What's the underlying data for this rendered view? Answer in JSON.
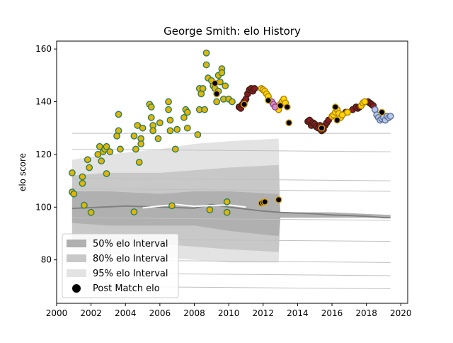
{
  "chart_data": {
    "type": "scatter",
    "title": "George Smith: elo History",
    "xlabel": "",
    "ylabel": "elo score",
    "xlim": [
      2000.0,
      2020.4
    ],
    "ylim": [
      63.5,
      163.0
    ],
    "xticks": [
      2000,
      2002,
      2004,
      2006,
      2008,
      2010,
      2012,
      2014,
      2016,
      2018,
      2020
    ],
    "yticks": [
      80,
      100,
      120,
      140,
      160
    ],
    "grid": false,
    "legend_position": "lower-left",
    "legend": [
      {
        "label": "50% elo Interval",
        "swatch": "band50"
      },
      {
        "label": "80% elo Interval",
        "swatch": "band80"
      },
      {
        "label": "95% elo Interval",
        "swatch": "band95"
      },
      {
        "label": "Post Match elo",
        "swatch": "dot"
      }
    ],
    "colors": {
      "band50": "#b0b0b0",
      "band80": "#c8c8c8",
      "band95": "#e3e3e3",
      "mean_line": "#808080",
      "thin_line": "#c0c0c0",
      "dot_outline": "#000000"
    },
    "bands": {
      "x": [
        2000.9,
        2003.0,
        2006.0,
        2008.0,
        2010.0,
        2012.9,
        2013.0,
        2016.0,
        2019.4
      ],
      "p50_low": [
        94,
        93,
        93,
        93,
        91,
        89,
        96,
        96,
        96
      ],
      "p50_high": [
        106,
        106,
        105,
        106,
        106,
        105,
        98,
        98,
        97
      ],
      "p80_low": [
        88,
        86,
        86,
        85,
        84,
        83,
        96,
        96,
        96
      ],
      "p80_high": [
        112,
        113,
        113,
        114,
        115,
        116,
        98,
        98,
        97
      ],
      "p95_low": [
        84,
        82,
        81,
        80,
        79,
        79,
        96,
        96,
        96
      ],
      "p95_high": [
        118,
        120,
        122,
        124,
        125,
        126,
        98,
        98,
        97
      ]
    },
    "mean_line": {
      "x": [
        2000.9,
        2002.0,
        2004.0,
        2006.0,
        2008.0,
        2009.0,
        2010.0,
        2012.0,
        2013.0,
        2015.0,
        2016.0,
        2017.0,
        2018.0,
        2019.0,
        2019.4
      ],
      "y": [
        99.5,
        99.8,
        100.4,
        100.0,
        99.6,
        101.0,
        100.0,
        98.5,
        98.0,
        97.5,
        97.0,
        96.8,
        96.5,
        96.0,
        96.0
      ]
    },
    "white_line": {
      "x": [
        2005.0,
        2006.0,
        2007.0,
        2008.0,
        2009.0,
        2010.0,
        2011.0
      ],
      "y": [
        99.7,
        100.4,
        101.0,
        100.3,
        100.6,
        100.8,
        100.0
      ]
    },
    "ghost_lines": {
      "x": [
        2000.9,
        2019.4
      ],
      "levels": [
        [
          128,
          128
        ],
        [
          122,
          121
        ],
        [
          111,
          110
        ],
        [
          107,
          106
        ],
        [
          96,
          95
        ],
        [
          88,
          87
        ],
        [
          80,
          79
        ],
        [
          75,
          74
        ],
        [
          70,
          69
        ]
      ]
    },
    "series": [
      {
        "name": "Post Match elo",
        "groups": [
          {
            "fill": "#e3b506",
            "edge": "#2e7d5b",
            "points": [
              [
                2000.9,
                105.7
              ],
              [
                2000.9,
                113.0
              ],
              [
                2001.0,
                105.0
              ],
              [
                2001.5,
                111.5
              ],
              [
                2001.5,
                109.0
              ],
              [
                2001.6,
                100.7
              ],
              [
                2001.8,
                118.0
              ],
              [
                2001.9,
                115.0
              ],
              [
                2002.0,
                98.0
              ],
              [
                2002.4,
                120.0
              ],
              [
                2002.5,
                123.0
              ],
              [
                2002.6,
                117.5
              ],
              [
                2002.7,
                121.0
              ],
              [
                2002.8,
                122.0
              ],
              [
                2002.9,
                112.7
              ],
              [
                2002.9,
                123.0
              ],
              [
                2003.1,
                121.0
              ],
              [
                2003.5,
                127.0
              ],
              [
                2003.6,
                129.0
              ],
              [
                2003.6,
                135.2
              ],
              [
                2003.7,
                122.0
              ],
              [
                2004.5,
                127.0
              ],
              [
                2004.5,
                98.2
              ],
              [
                2004.6,
                122.0
              ],
              [
                2004.7,
                131.0
              ],
              [
                2004.9,
                126.0
              ],
              [
                2004.8,
                117.0
              ],
              [
                2004.9,
                124.0
              ],
              [
                2005.0,
                130.0
              ],
              [
                2005.4,
                139.0
              ],
              [
                2005.5,
                134.0
              ],
              [
                2005.6,
                131.0
              ],
              [
                2005.5,
                138.0
              ],
              [
                2005.6,
                129.0
              ],
              [
                2005.9,
                126.0
              ],
              [
                2006.0,
                132.0
              ],
              [
                2006.5,
                140.0
              ],
              [
                2006.5,
                137.0
              ],
              [
                2006.6,
                129.0
              ],
              [
                2006.6,
                133.0
              ],
              [
                2006.7,
                100.5
              ],
              [
                2006.9,
                122.0
              ],
              [
                2007.0,
                129.5
              ],
              [
                2007.4,
                134.0
              ],
              [
                2007.5,
                137.0
              ],
              [
                2007.6,
                130.0
              ],
              [
                2007.6,
                136.0
              ],
              [
                2008.2,
                127.5
              ],
              [
                2008.3,
                137.0
              ],
              [
                2008.3,
                145.0
              ],
              [
                2008.4,
                143.0
              ],
              [
                2008.5,
                145.0
              ],
              [
                2008.6,
                137.0
              ],
              [
                2008.7,
                154.0
              ],
              [
                2008.7,
                158.5
              ],
              [
                2008.8,
                149.0
              ],
              [
                2008.9,
                99.0
              ],
              [
                2009.0,
                148.0
              ],
              [
                2009.1,
                146.0
              ],
              [
                2009.2,
                145.0
              ],
              [
                2009.3,
                140.0
              ],
              [
                2009.4,
                150.0
              ],
              [
                2009.4,
                144.0
              ],
              [
                2009.5,
                147.5
              ],
              [
                2009.6,
                152.5
              ],
              [
                2009.6,
                151.0
              ],
              [
                2009.7,
                141.0
              ],
              [
                2009.8,
                146.0
              ],
              [
                2009.9,
                102.0
              ],
              [
                2009.9,
                98.0
              ],
              [
                2010.0,
                141.0
              ],
              [
                2010.2,
                140.0
              ]
            ]
          },
          {
            "fill": "#8b1a24",
            "edge": "#3a2010",
            "points": [
              [
                2010.6,
                138.0
              ],
              [
                2010.7,
                137.5
              ],
              [
                2010.8,
                139.0
              ],
              [
                2010.9,
                140.0
              ],
              [
                2011.0,
                141.0
              ],
              [
                2011.1,
                143.0
              ],
              [
                2011.2,
                144.5
              ],
              [
                2011.3,
                145.0
              ],
              [
                2011.4,
                144.0
              ],
              [
                2011.5,
                145.0
              ],
              [
                2014.6,
                132.5
              ],
              [
                2014.7,
                133.0
              ],
              [
                2014.8,
                131.0
              ],
              [
                2014.9,
                132.0
              ],
              [
                2015.0,
                131.5
              ],
              [
                2015.1,
                130.5
              ],
              [
                2015.2,
                130.0
              ],
              [
                2015.3,
                131.0
              ],
              [
                2015.4,
                129.0
              ],
              [
                2015.5,
                129.5
              ],
              [
                2015.6,
                131.0
              ],
              [
                2015.7,
                132.0
              ],
              [
                2015.8,
                133.0
              ],
              [
                2016.8,
                136.0
              ],
              [
                2017.2,
                137.0
              ],
              [
                2017.4,
                138.0
              ],
              [
                2017.5,
                137.5
              ],
              [
                2017.6,
                138.0
              ],
              [
                2018.1,
                140.0
              ],
              [
                2018.2,
                139.5
              ],
              [
                2018.3,
                139.0
              ],
              [
                2018.4,
                138.5
              ]
            ]
          },
          {
            "fill": "#ffd700",
            "edge": "#b08000",
            "points": [
              [
                2011.9,
                145.0
              ],
              [
                2012.0,
                144.5
              ],
              [
                2012.1,
                144.0
              ],
              [
                2012.2,
                143.0
              ],
              [
                2012.3,
                142.0
              ],
              [
                2012.8,
                138.0
              ],
              [
                2012.9,
                137.0
              ],
              [
                2013.0,
                139.0
              ],
              [
                2013.1,
                140.0
              ],
              [
                2013.2,
                141.0
              ],
              [
                2013.3,
                139.5
              ],
              [
                2016.0,
                134.5
              ],
              [
                2016.1,
                135.0
              ],
              [
                2016.2,
                136.0
              ],
              [
                2016.3,
                137.0
              ],
              [
                2016.4,
                135.5
              ],
              [
                2016.5,
                134.0
              ],
              [
                2016.6,
                135.0
              ],
              [
                2016.9,
                136.0
              ],
              [
                2017.7,
                138.5
              ],
              [
                2017.8,
                139.5
              ],
              [
                2017.9,
                140.0
              ]
            ]
          },
          {
            "fill": "#d986cc",
            "edge": "#8a4a80",
            "points": [
              [
                2012.5,
                140.0
              ],
              [
                2012.6,
                139.0
              ],
              [
                2012.7,
                138.0
              ]
            ]
          },
          {
            "fill": "#b8c8e6",
            "edge": "#5a6f9a",
            "points": [
              [
                2018.5,
                137.0
              ],
              [
                2018.6,
                135.0
              ],
              [
                2018.7,
                134.0
              ],
              [
                2018.8,
                133.0
              ],
              [
                2018.9,
                133.5
              ],
              [
                2019.0,
                134.0
              ],
              [
                2019.1,
                133.0
              ],
              [
                2019.2,
                134.5
              ],
              [
                2019.3,
                134.0
              ],
              [
                2019.4,
                134.5
              ]
            ]
          },
          {
            "fill": "#000000",
            "edge": "#d4a017",
            "points": [
              [
                2011.9,
                101.5
              ],
              [
                2012.0,
                101.8
              ],
              [
                2012.1,
                102.0
              ],
              [
                2012.9,
                102.8
              ],
              [
                2009.2,
                147.0
              ],
              [
                2009.3,
                143.0
              ],
              [
                2012.3,
                140.5
              ],
              [
                2013.0,
                138.5
              ],
              [
                2013.4,
                138.0
              ],
              [
                2013.5,
                132.0
              ],
              [
                2016.2,
                138.0
              ],
              [
                2016.3,
                133.0
              ],
              [
                2010.9,
                139.0
              ],
              [
                2015.4,
                130.0
              ],
              [
                2018.9,
                136.0
              ]
            ]
          }
        ]
      }
    ]
  }
}
